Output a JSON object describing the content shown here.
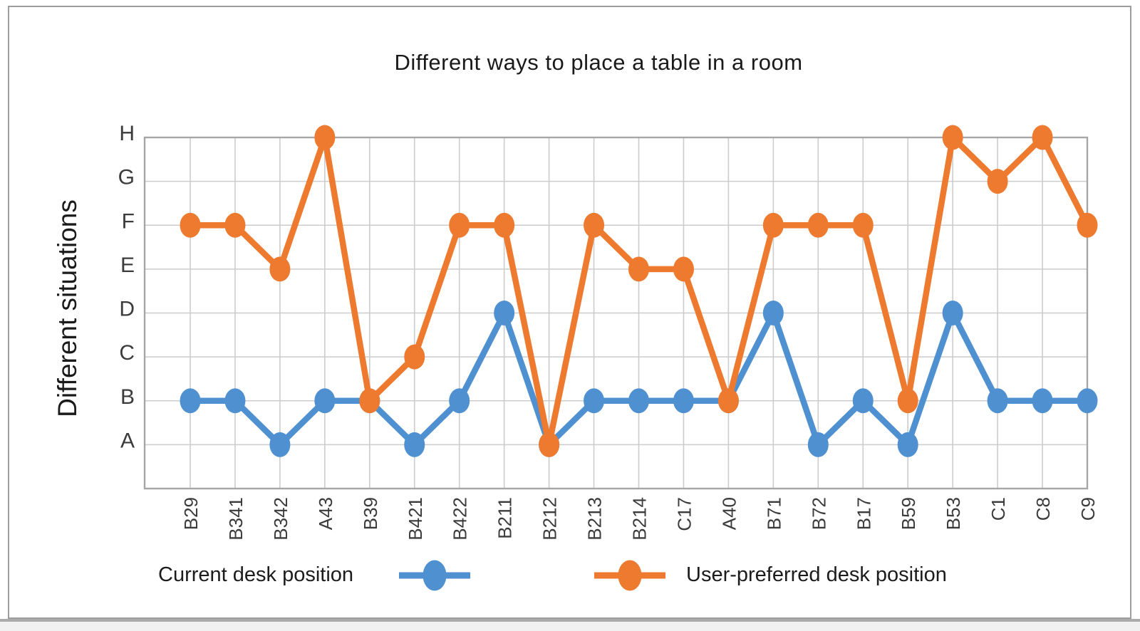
{
  "chart_data": {
    "type": "line",
    "title": "Different ways to place a table in a room",
    "xlabel": "",
    "ylabel": "Different situations",
    "categories": [
      "B29",
      "B341",
      "B342",
      "A43",
      "B39",
      "B421",
      "B422",
      "B211",
      "B212",
      "B213",
      "B214",
      "C17",
      "A40",
      "B71",
      "B72",
      "B17",
      "B59",
      "B53",
      "C1",
      "C8",
      "C9"
    ],
    "y_categories": [
      "A",
      "B",
      "C",
      "D",
      "E",
      "F",
      "G",
      "H"
    ],
    "series": [
      {
        "name": "Current desk position",
        "color": "#4F90D1",
        "values": [
          "B",
          "B",
          "A",
          "B",
          "B",
          "A",
          "B",
          "D",
          "A",
          "B",
          "B",
          "B",
          "B",
          "D",
          "A",
          "B",
          "A",
          "D",
          "B",
          "B",
          "B"
        ]
      },
      {
        "name": "User-preferred desk position",
        "color": "#ED7A2F",
        "values": [
          "F",
          "F",
          "E",
          "H",
          "B",
          "C",
          "F",
          "F",
          "A",
          "F",
          "E",
          "E",
          "B",
          "F",
          "F",
          "F",
          "B",
          "H",
          "G",
          "H",
          "F"
        ]
      }
    ],
    "grid": true,
    "legend_position": "bottom"
  },
  "colors": {
    "current_series": "#4F90D1",
    "preferred_series": "#ED7A2F",
    "gridline": "#cccccc",
    "plot_border": "#a6a6a6",
    "tick_label": "#3b3b3b",
    "title_text": "#1a1a1a",
    "legend_text": "#1c1c1c",
    "frame_border": "#9e9e9e"
  }
}
